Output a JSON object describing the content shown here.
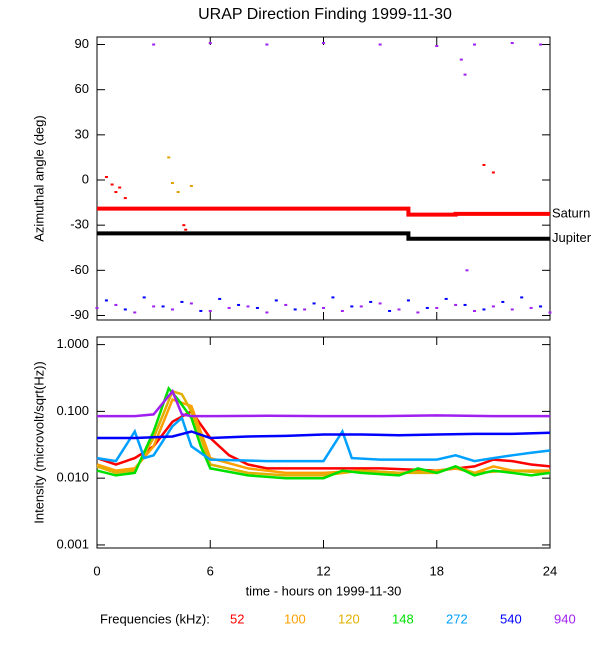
{
  "title": "URAP Direction Finding  1999-11-30",
  "chart_data": [
    {
      "type": "line",
      "ylabel": "Azimuthal angle (deg)",
      "xlim": [
        0,
        24
      ],
      "ylim": [
        -93,
        95
      ],
      "yticks": [
        -90,
        -60,
        -30,
        0,
        30,
        60,
        90
      ],
      "series": [
        {
          "type": "scatter",
          "color": "#a020f0",
          "x": [
            0,
            1,
            2,
            3,
            4,
            5,
            6,
            7,
            8,
            9,
            10,
            11,
            12,
            13,
            14,
            15,
            16,
            17,
            18,
            19,
            20,
            21,
            22,
            23,
            24
          ],
          "values": [
            -85,
            -83,
            -88,
            -84,
            -86,
            -82,
            -87,
            -85,
            -84,
            -88,
            -83,
            -86,
            -85,
            -87,
            -84,
            -82,
            -86,
            -88,
            -85,
            -83,
            -87,
            -84,
            -86,
            -85,
            -88
          ]
        },
        {
          "type": "scatter",
          "color": "#0000ff",
          "x": [
            0.5,
            1.5,
            2.5,
            3.5,
            4.5,
            5.5,
            6.5,
            7.5,
            8.5,
            9.5,
            10.5,
            11.5,
            12.5,
            13.5,
            14.5,
            15.5,
            16.5,
            17.5,
            18.5,
            19.5,
            20.5,
            21.5,
            22.5,
            23.5
          ],
          "values": [
            -80,
            -86,
            -78,
            -84,
            -81,
            -87,
            -79,
            -83,
            -85,
            -80,
            -86,
            -82,
            -78,
            -84,
            -81,
            -87,
            -80,
            -85,
            -79,
            -83,
            -86,
            -81,
            -78,
            -84
          ]
        },
        {
          "type": "scatter",
          "color": "#a020f0",
          "x": [
            3,
            6,
            9,
            12,
            15,
            18,
            19.3,
            19.5,
            19.6,
            20,
            22,
            23.5
          ],
          "values": [
            90,
            91,
            90,
            91,
            90,
            89,
            80,
            70,
            -60,
            90,
            91,
            90
          ]
        },
        {
          "type": "scatter",
          "color": "#ff0000",
          "x": [
            0.5,
            0.8,
            1.0,
            1.2,
            1.5,
            4.6,
            4.7,
            20.5,
            21.0
          ],
          "values": [
            2,
            -3,
            -8,
            -5,
            -12,
            -30,
            -33,
            10,
            5
          ]
        },
        {
          "type": "scatter",
          "color": "#e0a000",
          "x": [
            3.8,
            4.0,
            4.3,
            5.0
          ],
          "values": [
            15,
            -2,
            -8,
            -4
          ]
        },
        {
          "type": "line",
          "name": "Saturn",
          "color": "#ff0000",
          "x": [
            0,
            16.5,
            16.5,
            19,
            19,
            24
          ],
          "values": [
            -19,
            -19,
            -23,
            -23,
            -22.5,
            -22.5
          ]
        },
        {
          "type": "line",
          "name": "Jupiter",
          "color": "#000000",
          "x": [
            0,
            16.5,
            16.5,
            24
          ],
          "values": [
            -35.5,
            -35.5,
            -39,
            -39
          ]
        }
      ]
    },
    {
      "type": "line",
      "ylabel": "Intensity (microvolt/sqrt(Hz))",
      "xlabel": "time - hours on 1999-11-30",
      "log": true,
      "xlim": [
        0,
        24
      ],
      "ylim": [
        0.0009,
        1.3
      ],
      "xticks": [
        0,
        6,
        12,
        18,
        24
      ],
      "yticks": [
        {
          "value": 1,
          "label": "1.000"
        },
        {
          "value": 0.1,
          "label": "0.100"
        },
        {
          "value": 0.01,
          "label": "0.010"
        },
        {
          "value": 0.001,
          "label": "0.001"
        }
      ],
      "legend_title": "Frequencies (kHz):",
      "series": [
        {
          "name": "52",
          "color": "#ff0000",
          "x": [
            0,
            1,
            2,
            3,
            4,
            5,
            6,
            7,
            8,
            9,
            12,
            15,
            18,
            20,
            21,
            22,
            23,
            24
          ],
          "values": [
            0.02,
            0.016,
            0.02,
            0.03,
            0.07,
            0.1,
            0.04,
            0.022,
            0.016,
            0.014,
            0.014,
            0.014,
            0.013,
            0.015,
            0.019,
            0.018,
            0.016,
            0.015
          ]
        },
        {
          "name": "100",
          "color": "#ffa000",
          "x": [
            0,
            1,
            2,
            3,
            4,
            5,
            6,
            8,
            10,
            12,
            14,
            16,
            18,
            19,
            20,
            21,
            22,
            24
          ],
          "values": [
            0.016,
            0.013,
            0.014,
            0.03,
            0.15,
            0.12,
            0.02,
            0.014,
            0.012,
            0.012,
            0.013,
            0.012,
            0.013,
            0.014,
            0.012,
            0.015,
            0.013,
            0.013
          ]
        },
        {
          "name": "120",
          "color": "#e0b000",
          "x": [
            0,
            1,
            2,
            3,
            4,
            4.5,
            5,
            6,
            8,
            10,
            12,
            14,
            16,
            18,
            19,
            20,
            22,
            24
          ],
          "values": [
            0.015,
            0.012,
            0.013,
            0.04,
            0.2,
            0.18,
            0.1,
            0.016,
            0.012,
            0.011,
            0.011,
            0.013,
            0.012,
            0.012,
            0.015,
            0.012,
            0.013,
            0.012
          ]
        },
        {
          "name": "148",
          "color": "#00e000",
          "x": [
            0,
            1,
            2,
            3,
            3.8,
            4.3,
            5,
            5.5,
            6,
            8,
            10,
            12,
            13,
            14,
            16,
            17,
            18,
            19,
            20,
            21,
            22,
            23,
            24
          ],
          "values": [
            0.013,
            0.011,
            0.012,
            0.05,
            0.22,
            0.15,
            0.08,
            0.03,
            0.014,
            0.011,
            0.01,
            0.01,
            0.013,
            0.012,
            0.011,
            0.014,
            0.012,
            0.015,
            0.011,
            0.013,
            0.012,
            0.011,
            0.012
          ]
        },
        {
          "name": "272",
          "color": "#00a0ff",
          "x": [
            0,
            1,
            2,
            2.5,
            3,
            4,
            4.5,
            5,
            6,
            9,
            12,
            13,
            13.5,
            15,
            18,
            19,
            20,
            21,
            22,
            23,
            24
          ],
          "values": [
            0.02,
            0.018,
            0.05,
            0.02,
            0.022,
            0.06,
            0.08,
            0.03,
            0.019,
            0.018,
            0.018,
            0.05,
            0.02,
            0.019,
            0.019,
            0.022,
            0.018,
            0.02,
            0.022,
            0.024,
            0.026
          ]
        },
        {
          "name": "540",
          "color": "#0000ff",
          "x": [
            0,
            2,
            4,
            5,
            6,
            8,
            10,
            12,
            14,
            16,
            18,
            20,
            22,
            24
          ],
          "values": [
            0.04,
            0.04,
            0.042,
            0.05,
            0.04,
            0.042,
            0.043,
            0.045,
            0.045,
            0.044,
            0.045,
            0.046,
            0.046,
            0.048
          ]
        },
        {
          "name": "940",
          "color": "#a020f0",
          "x": [
            0,
            2,
            3,
            4,
            4.5,
            5,
            6,
            9,
            12,
            15,
            18,
            21,
            24
          ],
          "values": [
            0.085,
            0.085,
            0.09,
            0.2,
            0.09,
            0.085,
            0.085,
            0.086,
            0.085,
            0.085,
            0.087,
            0.085,
            0.085
          ]
        }
      ]
    }
  ]
}
